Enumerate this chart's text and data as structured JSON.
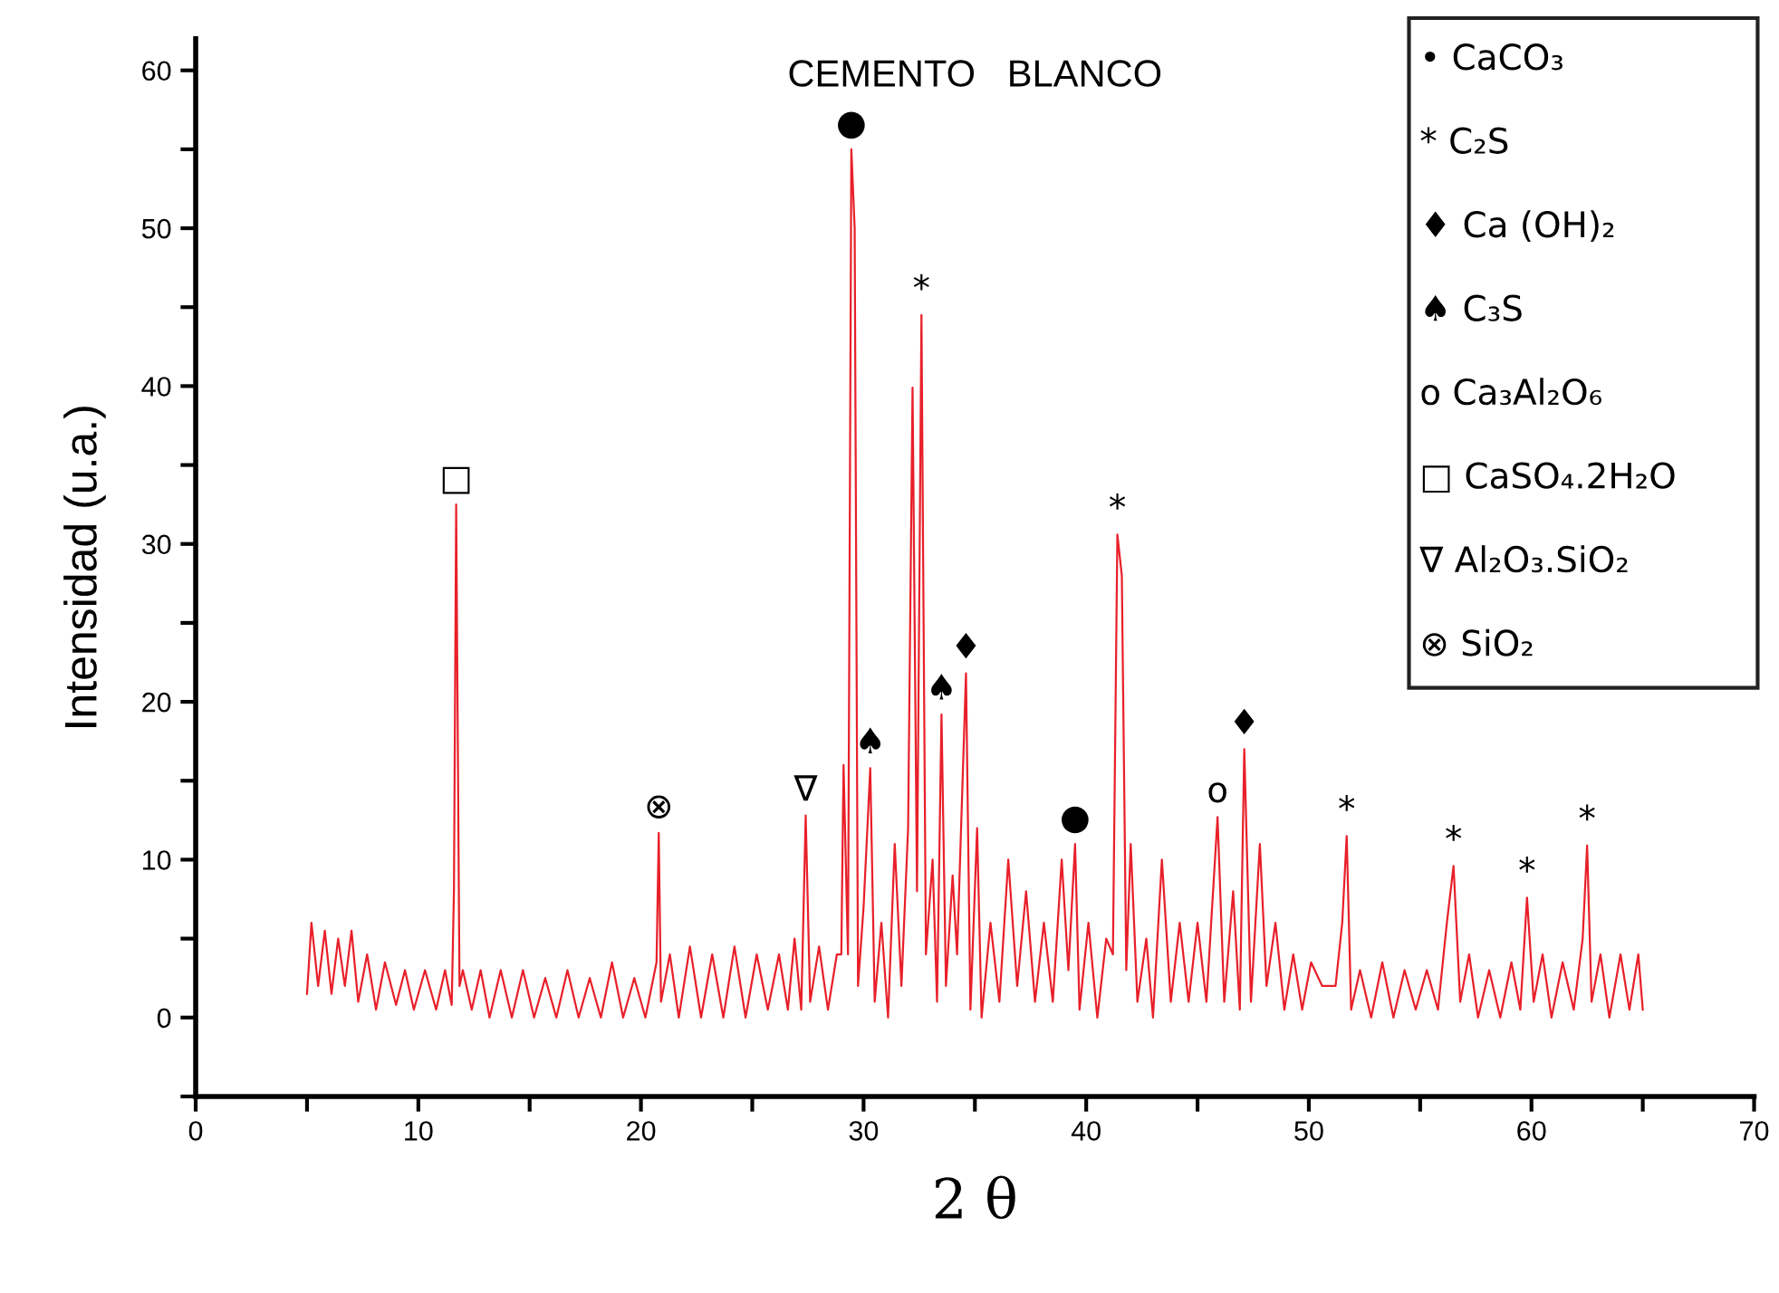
{
  "chart_data": {
    "type": "line",
    "title": "CEMENTO   BLANCO",
    "xlabel": "2 θ",
    "ylabel": "Intensidad (u.a.)",
    "xlim": [
      0,
      70
    ],
    "ylim": [
      -5,
      62
    ],
    "xticks": [
      0,
      {
        "value": 5,
        "label": null
      },
      10,
      {
        "value": 15,
        "label": null
      },
      20,
      {
        "value": 25,
        "label": null
      },
      30,
      {
        "value": 35,
        "label": null
      },
      40,
      {
        "value": 45,
        "label": null
      },
      50,
      {
        "value": 55,
        "label": null
      },
      60,
      {
        "value": 65,
        "label": null
      },
      70
    ],
    "yticks": [
      {
        "value": -5,
        "label": null
      },
      0,
      {
        "value": 5,
        "label": null
      },
      10,
      {
        "value": 15,
        "label": null
      },
      20,
      {
        "value": 25,
        "label": null
      },
      30,
      {
        "value": 35,
        "label": null
      },
      40,
      {
        "value": 45,
        "label": null
      },
      50,
      {
        "value": 55,
        "label": null
      },
      60
    ],
    "grid": false,
    "legend": false,
    "series": [
      {
        "color": "#e8202a",
        "x": [
          5.0,
          5.2,
          5.5,
          5.8,
          6.1,
          6.4,
          6.7,
          7.0,
          7.3,
          7.7,
          8.1,
          8.5,
          9.0,
          9.4,
          9.8,
          10.3,
          10.8,
          11.2,
          11.5,
          11.6,
          11.7,
          11.85,
          12.0,
          12.4,
          12.8,
          13.2,
          13.7,
          14.2,
          14.7,
          15.2,
          15.7,
          16.2,
          16.7,
          17.2,
          17.7,
          18.2,
          18.7,
          19.2,
          19.7,
          20.2,
          20.7,
          20.8,
          20.9,
          21.3,
          21.7,
          22.2,
          22.7,
          23.2,
          23.7,
          24.2,
          24.7,
          25.2,
          25.7,
          26.2,
          26.6,
          26.9,
          27.2,
          27.4,
          27.6,
          28.0,
          28.4,
          28.8,
          29.0,
          29.1,
          29.3,
          29.45,
          29.6,
          29.75,
          30.0,
          30.3,
          30.5,
          30.8,
          31.1,
          31.4,
          31.7,
          32.0,
          32.2,
          32.4,
          32.6,
          32.8,
          33.1,
          33.3,
          33.5,
          33.7,
          34.0,
          34.2,
          34.6,
          34.8,
          35.1,
          35.3,
          35.7,
          36.1,
          36.5,
          36.9,
          37.3,
          37.7,
          38.1,
          38.5,
          38.9,
          39.2,
          39.5,
          39.7,
          40.1,
          40.5,
          40.9,
          41.2,
          41.4,
          41.6,
          41.8,
          42.0,
          42.3,
          42.7,
          43.0,
          43.4,
          43.8,
          44.2,
          44.6,
          45.0,
          45.4,
          45.9,
          46.2,
          46.6,
          46.9,
          47.1,
          47.4,
          47.8,
          48.1,
          48.5,
          48.9,
          49.3,
          49.7,
          50.1,
          50.6,
          51.2,
          51.5,
          51.7,
          51.9,
          52.3,
          52.8,
          53.3,
          53.8,
          54.3,
          54.8,
          55.3,
          55.8,
          56.2,
          56.5,
          56.8,
          57.2,
          57.6,
          58.1,
          58.6,
          59.1,
          59.5,
          59.8,
          60.1,
          60.5,
          60.9,
          61.4,
          61.9,
          62.3,
          62.5,
          62.7,
          63.1,
          63.5,
          64.0,
          64.4,
          64.8,
          65.0
        ],
        "values": [
          1.5,
          6,
          2,
          5.5,
          1.5,
          5,
          2,
          5.5,
          1,
          4,
          0.5,
          3.5,
          0.8,
          3,
          0.5,
          3,
          0.5,
          3,
          0.8,
          8,
          32.5,
          2,
          3,
          0.5,
          3,
          0,
          3,
          0,
          3,
          0,
          2.5,
          0,
          3,
          0,
          2.5,
          0,
          3.5,
          0,
          2.5,
          0,
          3.5,
          11.7,
          1,
          4,
          0,
          4.5,
          0,
          4,
          0,
          4.5,
          0,
          4,
          0.5,
          4,
          0.5,
          5,
          0.5,
          12.8,
          1,
          4.5,
          0.5,
          4,
          4,
          16,
          4,
          55,
          50,
          2,
          7,
          15.8,
          1,
          6,
          0,
          11,
          2,
          12,
          39.9,
          8,
          44.5,
          4,
          10,
          1,
          19.2,
          2,
          9,
          4,
          21.8,
          0.5,
          12,
          0,
          6,
          1,
          10,
          2,
          8,
          1,
          6,
          1,
          10,
          3,
          11,
          0.5,
          6,
          0,
          5,
          4,
          30.6,
          28,
          3,
          11,
          1,
          5,
          0,
          10,
          1,
          6,
          1,
          6,
          1,
          12.7,
          1,
          8,
          0.5,
          17,
          1,
          11,
          2,
          6,
          0.5,
          4,
          0.5,
          3.5,
          2,
          2,
          6,
          11.5,
          0.5,
          3,
          0,
          3.5,
          0,
          3,
          0.5,
          3,
          0.5,
          6,
          9.6,
          1,
          4,
          0,
          3,
          0,
          3.5,
          0.5,
          7.6,
          1,
          4,
          0,
          3.5,
          0.5,
          5,
          10.9,
          1,
          4,
          0,
          4,
          0.5,
          4,
          0.5
        ]
      }
    ],
    "annotations": [
      {
        "text": "□",
        "x": 11.7,
        "y": 32.5
      },
      {
        "text": "⊗",
        "x": 20.8,
        "y": 11.7
      },
      {
        "text": "∇",
        "x": 27.4,
        "y": 12.8
      },
      {
        "text": "●",
        "x": 29.45,
        "y": 55
      },
      {
        "text": "♠",
        "x": 30.3,
        "y": 15.8
      },
      {
        "text": "*",
        "x": 32.6,
        "y": 44.5
      },
      {
        "text": "♠",
        "x": 33.5,
        "y": 19.2
      },
      {
        "text": "♦",
        "x": 34.6,
        "y": 21.8
      },
      {
        "text": "●",
        "x": 39.5,
        "y": 11
      },
      {
        "text": "*",
        "x": 41.4,
        "y": 30.6
      },
      {
        "text": "o",
        "x": 45.9,
        "y": 12.7
      },
      {
        "text": "♦",
        "x": 47.1,
        "y": 17
      },
      {
        "text": "*",
        "x": 51.7,
        "y": 11.5
      },
      {
        "text": "*",
        "x": 56.5,
        "y": 9.6
      },
      {
        "text": "*",
        "x": 59.8,
        "y": 7.6
      },
      {
        "text": "*",
        "x": 62.5,
        "y": 10.9
      },
      "• CaCO₃",
      "* C₂S",
      "♦ Ca (OH)₂",
      "♠ C₃S",
      "o Ca₃Al₂O₆",
      "□ CaSO₄.2H₂O",
      "∇ Al₂O₃.SiO₂",
      "⊗ SiO₂"
    ]
  }
}
